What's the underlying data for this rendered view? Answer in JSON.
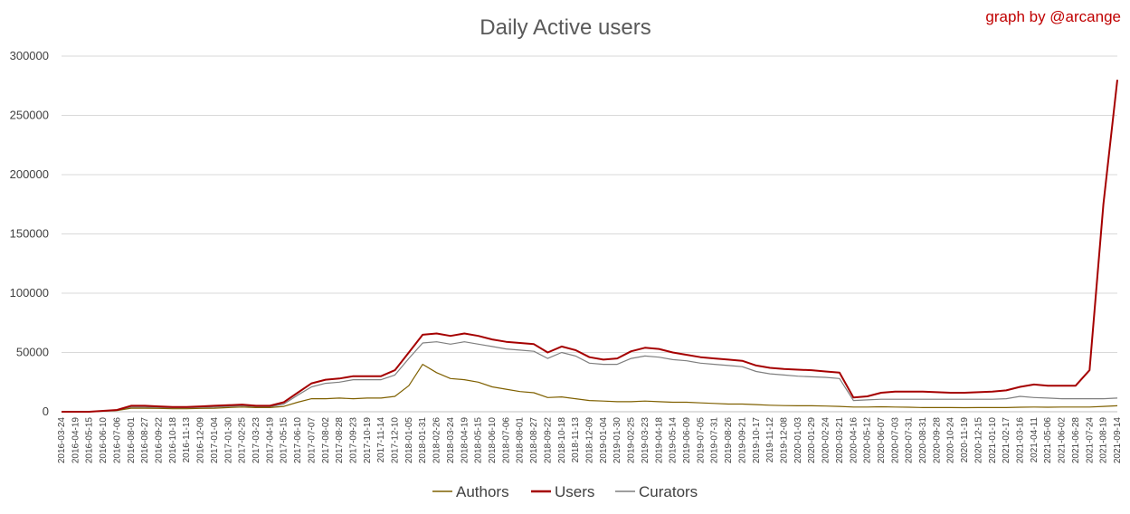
{
  "chart_data": {
    "type": "line",
    "title": "Daily Active users",
    "credit": "graph by @arcange",
    "ylim": [
      0,
      300000
    ],
    "yticks": [
      0,
      50000,
      100000,
      150000,
      200000,
      250000,
      300000
    ],
    "ytick_labels": [
      "0",
      "50000",
      "100000",
      "150000",
      "200000",
      "250000",
      "300000"
    ],
    "grid": true,
    "legend_position": "bottom",
    "x_tick_labels": [
      "2016-03-24",
      "2016-04-19",
      "2016-05-15",
      "2016-06-10",
      "2016-07-06",
      "2016-08-01",
      "2016-08-27",
      "2016-09-22",
      "2016-10-18",
      "2016-11-13",
      "2016-12-09",
      "2017-01-04",
      "2017-01-30",
      "2017-02-25",
      "2017-03-23",
      "2017-04-19",
      "2017-05-15",
      "2017-06-10",
      "2017-07-07",
      "2017-08-02",
      "2017-08-28",
      "2017-09-23",
      "2017-10-19",
      "2017-11-14",
      "2017-12-10",
      "2018-01-05",
      "2018-01-31",
      "2018-02-26",
      "2018-03-24",
      "2018-04-19",
      "2018-05-15",
      "2018-06-10",
      "2018-07-06",
      "2018-08-01",
      "2018-08-27",
      "2018-09-22",
      "2018-10-18",
      "2018-11-13",
      "2018-12-09",
      "2019-01-04",
      "2019-01-30",
      "2019-02-25",
      "2019-03-23",
      "2019-04-18",
      "2019-05-14",
      "2019-06-09",
      "2019-07-05",
      "2019-07-31",
      "2019-08-26",
      "2019-09-21",
      "2019-10-17",
      "2019-11-12",
      "2019-12-08",
      "2020-01-03",
      "2020-01-29",
      "2020-02-24",
      "2020-03-21",
      "2020-04-16",
      "2020-05-12",
      "2020-06-07",
      "2020-07-03",
      "2020-07-31",
      "2020-08-31",
      "2020-09-28",
      "2020-10-24",
      "2020-11-19",
      "2020-12-15",
      "2021-01-10",
      "2021-02-17",
      "2021-03-16",
      "2021-04-11",
      "2021-05-06",
      "2021-06-02",
      "2021-06-28",
      "2021-07-24",
      "2021-08-19",
      "2021-09-14"
    ],
    "series": [
      {
        "name": "Authors",
        "color": "#7f6000",
        "values": [
          0,
          0,
          0,
          500,
          1000,
          3000,
          3000,
          2800,
          2500,
          2500,
          2800,
          3000,
          3500,
          4000,
          3500,
          3500,
          4500,
          8000,
          11000,
          11000,
          11500,
          11000,
          11500,
          11500,
          13000,
          22000,
          40000,
          33000,
          28000,
          27000,
          25000,
          21000,
          19000,
          17000,
          16000,
          12000,
          12500,
          11000,
          9500,
          9000,
          8500,
          8500,
          9000,
          8500,
          8000,
          8000,
          7500,
          7000,
          6500,
          6500,
          6000,
          5500,
          5200,
          5000,
          5000,
          4800,
          4500,
          4000,
          4000,
          4200,
          4000,
          3800,
          3500,
          3500,
          3500,
          3400,
          3500,
          3500,
          3500,
          3800,
          4000,
          3800,
          4000,
          4000,
          4000,
          4500,
          5000
        ]
      },
      {
        "name": "Users",
        "color": "#a50000",
        "values": [
          0,
          0,
          0,
          800,
          1500,
          5000,
          5000,
          4500,
          4000,
          4000,
          4500,
          5000,
          5500,
          6000,
          5000,
          5000,
          8000,
          16000,
          24000,
          27000,
          28000,
          30000,
          30000,
          30000,
          35000,
          50000,
          65000,
          66000,
          64000,
          66000,
          64000,
          61000,
          59000,
          58000,
          57000,
          50000,
          55000,
          52000,
          46000,
          44000,
          45000,
          51000,
          54000,
          53000,
          50000,
          48000,
          46000,
          45000,
          44000,
          43000,
          39000,
          37000,
          36000,
          35500,
          35000,
          34000,
          33000,
          12000,
          13000,
          16000,
          17000,
          17000,
          17000,
          16500,
          16000,
          16000,
          16500,
          17000,
          18000,
          21000,
          23000,
          22000,
          22000,
          22000,
          35000,
          175000,
          280000
        ]
      },
      {
        "name": "Curators",
        "color": "#7f7f7f",
        "values": [
          0,
          0,
          0,
          600,
          1200,
          4000,
          4000,
          3600,
          3300,
          3300,
          3700,
          4000,
          4500,
          5000,
          4200,
          4200,
          6500,
          14000,
          21000,
          24000,
          25000,
          27000,
          27000,
          27000,
          31000,
          45000,
          58000,
          59000,
          57000,
          59000,
          57000,
          55000,
          53000,
          52000,
          51000,
          45000,
          50000,
          47000,
          41000,
          40000,
          40000,
          45000,
          47000,
          46000,
          44000,
          43000,
          41000,
          40000,
          39000,
          38000,
          34000,
          32000,
          31000,
          30000,
          29500,
          29000,
          28000,
          9500,
          10000,
          10500,
          10500,
          10500,
          10500,
          10500,
          10500,
          10500,
          10500,
          10500,
          11000,
          13000,
          12000,
          11500,
          11000,
          11000,
          11000,
          11000,
          11500
        ]
      }
    ]
  }
}
